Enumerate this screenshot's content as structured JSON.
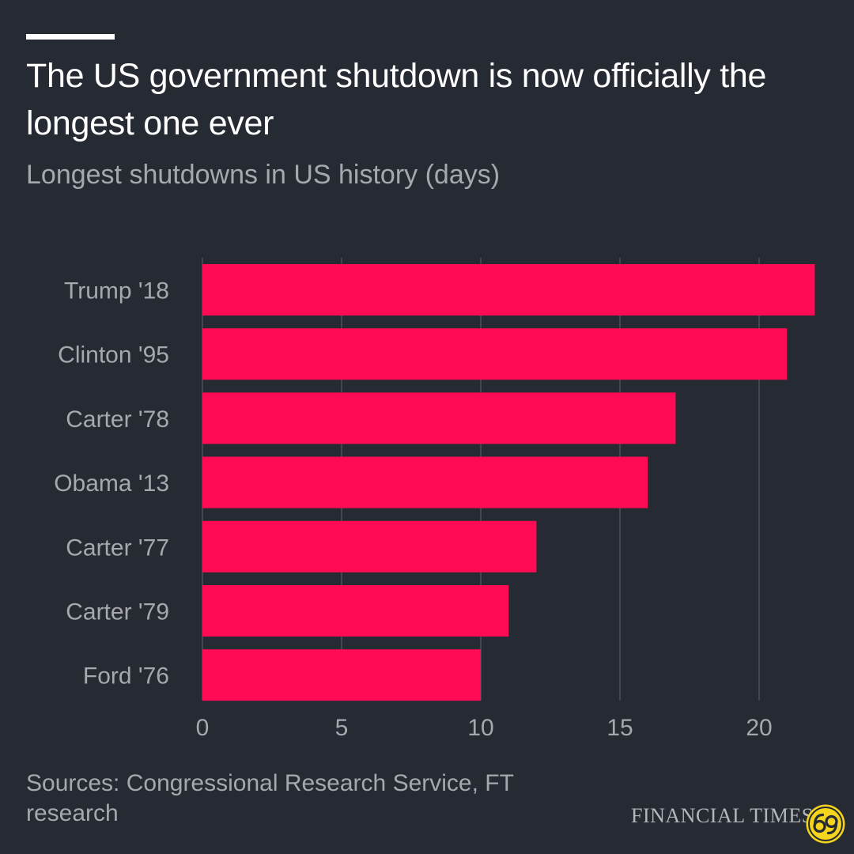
{
  "header": {
    "title": "The US government shutdown is now officially the longest one ever",
    "subtitle": "Longest shutdowns in US history (days)"
  },
  "footer": {
    "source": "Sources: Congressional Research Service, FT research",
    "brand": "FINANCIAL TIMES"
  },
  "colors": {
    "background": "#262a33",
    "bar": "#ff0a54",
    "grid": "#4b4f58",
    "axis_label": "#a6a8ae",
    "badge": "#f4d41c"
  },
  "icons": {
    "badge": "circular-logo-badge-icon"
  },
  "chart_data": {
    "type": "bar",
    "orientation": "horizontal",
    "categories": [
      "Trump '18",
      "Clinton '95",
      "Carter '78",
      "Obama '13",
      "Carter '77",
      "Carter '79",
      "Ford '76"
    ],
    "values": [
      22,
      21,
      17,
      16,
      12,
      11,
      10
    ],
    "title": "The US government shutdown is now officially the longest one ever",
    "subtitle": "Longest shutdowns in US history (days)",
    "xlim": [
      0,
      22
    ],
    "xticks": [
      0,
      5,
      10,
      15,
      20
    ],
    "xtick_labels": [
      "0",
      "5",
      "10",
      "15",
      "20"
    ],
    "grid": "vertical",
    "legend": "none"
  }
}
